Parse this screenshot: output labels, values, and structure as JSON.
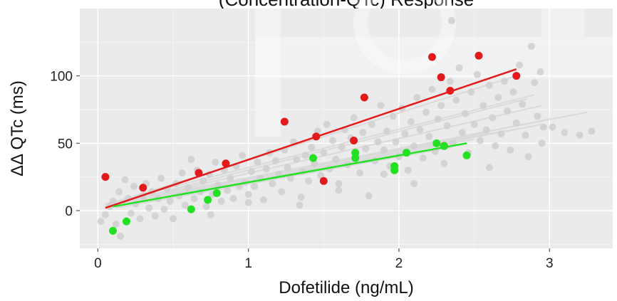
{
  "chart_data": {
    "type": "scatter",
    "title": "(Concentration-QTc) Response",
    "xlabel": "Dofetilide (ng/mL)",
    "ylabel": "ΔΔ QTc (ms)",
    "xlim": [
      -0.12,
      3.42
    ],
    "ylim": [
      -28,
      150
    ],
    "x_ticks": [
      0,
      1,
      2,
      3
    ],
    "y_ticks": [
      0,
      50,
      100
    ],
    "x_tick_labels": [
      "0",
      "1",
      "2",
      "3"
    ],
    "y_tick_labels": [
      "0",
      "50",
      "100"
    ],
    "grid": true,
    "colors": {
      "panel": "#ebebeb",
      "grid_major": "#ffffff",
      "grid_minor": "#f4f4f4",
      "background_points": "#cfcfcf",
      "background_lines": "#dadada",
      "red": "#e31a1c",
      "green": "#22e022"
    },
    "series": [
      {
        "name": "red",
        "points": [
          {
            "x": 0.05,
            "y": 25
          },
          {
            "x": 0.3,
            "y": 17
          },
          {
            "x": 0.67,
            "y": 28
          },
          {
            "x": 0.85,
            "y": 35
          },
          {
            "x": 1.24,
            "y": 66
          },
          {
            "x": 1.45,
            "y": 55
          },
          {
            "x": 1.5,
            "y": 22
          },
          {
            "x": 1.7,
            "y": 52
          },
          {
            "x": 1.77,
            "y": 84
          },
          {
            "x": 2.22,
            "y": 114
          },
          {
            "x": 2.28,
            "y": 99
          },
          {
            "x": 2.3,
            "y": 48
          },
          {
            "x": 2.34,
            "y": 89
          },
          {
            "x": 2.53,
            "y": 115
          },
          {
            "x": 2.78,
            "y": 100
          }
        ],
        "fit": {
          "x": [
            0.05,
            2.78
          ],
          "y": [
            2,
            105
          ]
        }
      },
      {
        "name": "green",
        "points": [
          {
            "x": 0.1,
            "y": -15
          },
          {
            "x": 0.19,
            "y": -8
          },
          {
            "x": 0.62,
            "y": 1
          },
          {
            "x": 0.73,
            "y": 8
          },
          {
            "x": 0.79,
            "y": 13
          },
          {
            "x": 1.43,
            "y": 39
          },
          {
            "x": 1.71,
            "y": 39
          },
          {
            "x": 1.71,
            "y": 43
          },
          {
            "x": 1.97,
            "y": 30
          },
          {
            "x": 1.97,
            "y": 33
          },
          {
            "x": 2.05,
            "y": 43
          },
          {
            "x": 2.25,
            "y": 50
          },
          {
            "x": 2.3,
            "y": 48
          },
          {
            "x": 2.45,
            "y": 41
          }
        ],
        "fit": {
          "x": [
            0.1,
            2.45
          ],
          "y": [
            3,
            50
          ]
        }
      }
    ],
    "background_points": [
      [
        0.02,
        -8
      ],
      [
        0.05,
        -3
      ],
      [
        0.08,
        3
      ],
      [
        0.1,
        7
      ],
      [
        0.12,
        -10
      ],
      [
        0.14,
        14
      ],
      [
        0.15,
        -19
      ],
      [
        0.18,
        23
      ],
      [
        0.2,
        9
      ],
      [
        0.22,
        -2
      ],
      [
        0.24,
        18
      ],
      [
        0.25,
        5
      ],
      [
        0.28,
        -6
      ],
      [
        0.3,
        11
      ],
      [
        0.32,
        20
      ],
      [
        0.34,
        2
      ],
      [
        0.36,
        14
      ],
      [
        0.38,
        -4
      ],
      [
        0.4,
        9
      ],
      [
        0.42,
        24
      ],
      [
        0.44,
        1
      ],
      [
        0.46,
        16
      ],
      [
        0.48,
        7
      ],
      [
        0.5,
        -6
      ],
      [
        0.52,
        20
      ],
      [
        0.54,
        11
      ],
      [
        0.56,
        28
      ],
      [
        0.58,
        4
      ],
      [
        0.6,
        17
      ],
      [
        0.62,
        38
      ],
      [
        0.64,
        9
      ],
      [
        0.66,
        30
      ],
      [
        0.68,
        14
      ],
      [
        0.7,
        22
      ],
      [
        0.72,
        3
      ],
      [
        0.74,
        27
      ],
      [
        0.76,
        12
      ],
      [
        0.78,
        36
      ],
      [
        0.8,
        19
      ],
      [
        0.82,
        7
      ],
      [
        0.84,
        30
      ],
      [
        0.86,
        15
      ],
      [
        0.88,
        24
      ],
      [
        0.9,
        9
      ],
      [
        0.92,
        33
      ],
      [
        0.94,
        18
      ],
      [
        0.96,
        41
      ],
      [
        0.98,
        21
      ],
      [
        1.0,
        12
      ],
      [
        1.02,
        29
      ],
      [
        1.04,
        18
      ],
      [
        1.06,
        36
      ],
      [
        1.08,
        24
      ],
      [
        1.1,
        8
      ],
      [
        1.12,
        31
      ],
      [
        1.14,
        43
      ],
      [
        1.16,
        20
      ],
      [
        1.18,
        37
      ],
      [
        1.2,
        27
      ],
      [
        1.22,
        14
      ],
      [
        1.24,
        45
      ],
      [
        1.26,
        32
      ],
      [
        1.28,
        24
      ],
      [
        1.3,
        51
      ],
      [
        1.32,
        38
      ],
      [
        1.34,
        4
      ],
      [
        1.36,
        29
      ],
      [
        1.38,
        41
      ],
      [
        1.4,
        22
      ],
      [
        1.42,
        47
      ],
      [
        1.44,
        35
      ],
      [
        1.46,
        59
      ],
      [
        1.48,
        26
      ],
      [
        1.5,
        43
      ],
      [
        1.52,
        64
      ],
      [
        1.54,
        31
      ],
      [
        1.56,
        52
      ],
      [
        1.58,
        38
      ],
      [
        1.6,
        20
      ],
      [
        1.62,
        47
      ],
      [
        1.64,
        60
      ],
      [
        1.66,
        34
      ],
      [
        1.68,
        54
      ],
      [
        1.7,
        69
      ],
      [
        1.72,
        40
      ],
      [
        1.74,
        28
      ],
      [
        1.76,
        58
      ],
      [
        1.78,
        46
      ],
      [
        1.8,
        11
      ],
      [
        1.82,
        64
      ],
      [
        1.84,
        37
      ],
      [
        1.86,
        51
      ],
      [
        1.88,
        78
      ],
      [
        1.9,
        45
      ],
      [
        1.92,
        59
      ],
      [
        1.94,
        33
      ],
      [
        1.96,
        70
      ],
      [
        1.98,
        51
      ],
      [
        2.0,
        40
      ],
      [
        2.02,
        76
      ],
      [
        2.04,
        57
      ],
      [
        2.06,
        30
      ],
      [
        2.08,
        66
      ],
      [
        2.1,
        48
      ],
      [
        2.12,
        84
      ],
      [
        2.14,
        60
      ],
      [
        2.16,
        39
      ],
      [
        2.18,
        73
      ],
      [
        2.2,
        55
      ],
      [
        2.22,
        90
      ],
      [
        2.24,
        44
      ],
      [
        2.26,
        68
      ],
      [
        2.28,
        78
      ],
      [
        2.3,
        35
      ],
      [
        2.32,
        63
      ],
      [
        2.34,
        96
      ],
      [
        2.36,
        50
      ],
      [
        2.38,
        82
      ],
      [
        2.4,
        106
      ],
      [
        2.42,
        58
      ],
      [
        2.44,
        72
      ],
      [
        2.46,
        43
      ],
      [
        2.48,
        88
      ],
      [
        2.5,
        64
      ],
      [
        2.52,
        101
      ],
      [
        2.54,
        52
      ],
      [
        2.56,
        78
      ],
      [
        2.58,
        60
      ],
      [
        2.6,
        93
      ],
      [
        2.62,
        69
      ],
      [
        2.64,
        48
      ],
      [
        2.66,
        84
      ],
      [
        2.68,
        57
      ],
      [
        2.7,
        96
      ],
      [
        2.72,
        74
      ],
      [
        2.74,
        45
      ],
      [
        2.76,
        88
      ],
      [
        2.78,
        65
      ],
      [
        2.8,
        108
      ],
      [
        2.82,
        79
      ],
      [
        2.84,
        56
      ],
      [
        2.86,
        40
      ],
      [
        2.88,
        122
      ],
      [
        2.9,
        95
      ],
      [
        2.92,
        70
      ],
      [
        2.94,
        103
      ],
      [
        2.96,
        62
      ],
      [
        3.02,
        62
      ],
      [
        3.1,
        58
      ],
      [
        3.2,
        56
      ],
      [
        3.28,
        59
      ],
      [
        2.35,
        141
      ],
      [
        1.6,
        15
      ],
      [
        1.0,
        6
      ],
      [
        1.35,
        10
      ],
      [
        0.75,
        -3
      ],
      [
        2.1,
        20
      ],
      [
        1.9,
        27
      ],
      [
        2.6,
        32
      ],
      [
        2.95,
        50
      ]
    ],
    "background_lines": [
      {
        "x": [
          0.05,
          2.78
        ],
        "y": [
          4,
          100
        ]
      },
      {
        "x": [
          0.05,
          2.9
        ],
        "y": [
          5,
          86
        ]
      },
      {
        "x": [
          0.05,
          2.85
        ],
        "y": [
          3,
          83
        ]
      },
      {
        "x": [
          0.08,
          2.95
        ],
        "y": [
          4,
          78
        ]
      },
      {
        "x": [
          0.05,
          3.25
        ],
        "y": [
          4,
          73
        ]
      },
      {
        "x": [
          0.05,
          3.05
        ],
        "y": [
          3,
          69
        ]
      },
      {
        "x": [
          0.05,
          2.95
        ],
        "y": [
          2,
          64
        ]
      },
      {
        "x": [
          0.05,
          2.8
        ],
        "y": [
          5,
          61
        ]
      },
      {
        "x": [
          0.1,
          2.6
        ],
        "y": [
          4,
          58
        ]
      },
      {
        "x": [
          0.1,
          2.5
        ],
        "y": [
          3,
          53
        ]
      },
      {
        "x": [
          0.12,
          2.35
        ],
        "y": [
          2,
          47
        ]
      },
      {
        "x": [
          0.1,
          2.2
        ],
        "y": [
          5,
          44
        ]
      }
    ]
  }
}
